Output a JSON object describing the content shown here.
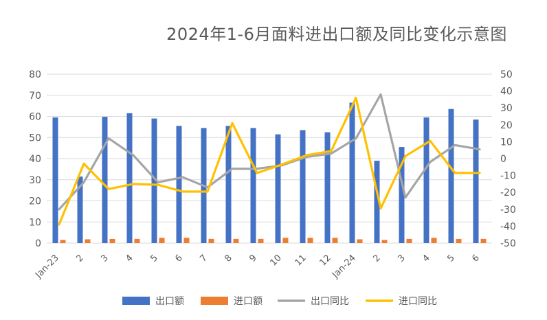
{
  "chart_data": {
    "type": "bar",
    "title": "2024年1-6月面料进出口额及同比变化示意图",
    "categories": [
      "Jan-23",
      "2",
      "3",
      "4",
      "5",
      "6",
      "7",
      "8",
      "9",
      "10",
      "11",
      "12",
      "Jan-24",
      "2",
      "3",
      "4",
      "5",
      "6"
    ],
    "series": [
      {
        "name": "出口额",
        "type": "bar",
        "axis": "left",
        "values": [
          59.5,
          31.5,
          59.8,
          61.5,
          59,
          55.5,
          54.5,
          55.5,
          54.5,
          51.5,
          53.5,
          52.5,
          66.5,
          39,
          45.5,
          59.5,
          63.5,
          58.5
        ]
      },
      {
        "name": "进口额",
        "type": "bar",
        "axis": "left",
        "values": [
          1.5,
          1.8,
          2.0,
          2.0,
          2.5,
          2.5,
          2.0,
          2.0,
          2.0,
          2.5,
          2.5,
          2.5,
          1.8,
          1.5,
          2.0,
          2.5,
          2.0,
          2.0
        ]
      },
      {
        "name": "出口同比",
        "type": "line",
        "axis": "right",
        "values": [
          -30,
          -14,
          12,
          2,
          -14,
          -11,
          -17,
          -6,
          -6,
          -4,
          1,
          3,
          12,
          38,
          -23,
          -2,
          8,
          5.5
        ]
      },
      {
        "name": "进口同比",
        "type": "line",
        "axis": "right",
        "values": [
          -39,
          -3,
          -18,
          -15,
          -15.5,
          -19.5,
          -19.5,
          21,
          -8.5,
          -3.5,
          2,
          4.5,
          36,
          -29.5,
          1.5,
          10.5,
          -8.5,
          -8.5
        ]
      }
    ],
    "ylim_left": [
      0,
      80
    ],
    "yticks_left": [
      0,
      10,
      20,
      30,
      40,
      50,
      60,
      70,
      80
    ],
    "ylim_right": [
      -50,
      50
    ],
    "yticks_right": [
      -50,
      -40,
      -30,
      -20,
      -10,
      0,
      10,
      20,
      30,
      40,
      50
    ],
    "xlabel": "",
    "ylabel": "",
    "grid": true,
    "legend": "bottom",
    "colors": {
      "export_bar": "#4472C4",
      "import_bar": "#ED7D31",
      "export_yoy": "#A5A5A5",
      "import_yoy": "#FFC000",
      "grid": "#D9D9D9",
      "text": "#595959"
    }
  }
}
